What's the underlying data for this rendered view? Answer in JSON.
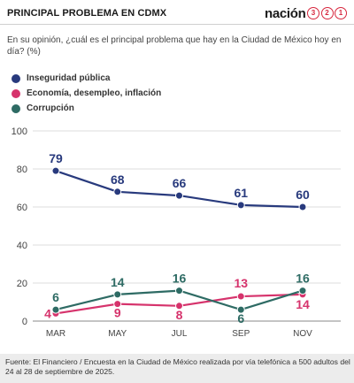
{
  "header": {
    "title": "PRINCIPAL PROBLEMA EN CDMX",
    "brand_word": "nación",
    "brand_digits": [
      "3",
      "2",
      "1"
    ]
  },
  "question": "En su opinión, ¿cuál es el principal problema que hay en la Ciudad de México hoy en día? (%)",
  "footer": {
    "source": "Fuente: El Financiero / Encuesta en la Ciudad de México realizada por vía telefónica a 500 adultos del 24 al 28 de septiembre de 2025."
  },
  "colors": {
    "inseguridad": "#283a7d",
    "economia": "#d6336c",
    "corrupcion": "#2e6b64",
    "axis_text": "#444444",
    "grid": "#dddddd"
  },
  "chart_data": {
    "type": "line",
    "title": "PRINCIPAL PROBLEMA EN CDMX",
    "xlabel": "",
    "ylabel": "",
    "categories": [
      "MAR",
      "MAY",
      "JUL",
      "SEP",
      "NOV"
    ],
    "ylim": [
      0,
      100
    ],
    "yticks": [
      0,
      20,
      40,
      60,
      80,
      100
    ],
    "grid": true,
    "legend_position": "top-left",
    "series": [
      {
        "name": "Inseguridad pública",
        "color": "#283a7d",
        "values": [
          79,
          68,
          66,
          61,
          60
        ],
        "label_side": "above"
      },
      {
        "name": "Economía, desempleo, inflación",
        "color": "#d6336c",
        "values": [
          4,
          9,
          8,
          13,
          14
        ],
        "label_side": "mixed"
      },
      {
        "name": "Corrupción",
        "color": "#2e6b64",
        "values": [
          6,
          14,
          16,
          6,
          16
        ],
        "label_side": "mixed"
      }
    ]
  }
}
